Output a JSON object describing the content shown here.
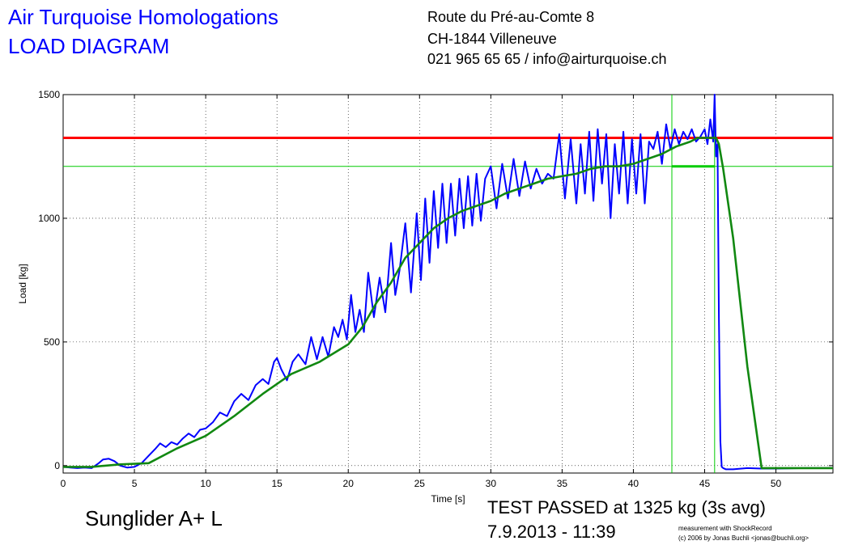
{
  "header": {
    "org_title": "Air Turquoise Homologations",
    "diagram_title": "LOAD DIAGRAM",
    "address_line1": "Route du Pré-au-Comte 8",
    "address_line2": "CH-1844 Villeneuve",
    "address_line3": "021 965 65 65 / info@airturquoise.ch"
  },
  "footer": {
    "glider_name": "Sunglider A+ L",
    "result": "TEST PASSED at 1325 kg (3s avg)",
    "datetime": "7.9.2013 - 11:39",
    "credit_line1": "measurement with ShockRecord",
    "credit_line2": "(c) 2006 by Jonas Buchli <jonas@buchli.org>"
  },
  "chart_data": {
    "type": "line",
    "xlabel": "Time [s]",
    "ylabel": "Load [kg]",
    "xlim": [
      0,
      54
    ],
    "ylim": [
      -30,
      1500
    ],
    "xticks": [
      0,
      5,
      10,
      15,
      20,
      25,
      30,
      35,
      40,
      45,
      50
    ],
    "yticks": [
      0,
      500,
      1000,
      1500
    ],
    "grid": true,
    "colors": {
      "raw": "#0000ff",
      "avg": "#118811",
      "limit": "#ff0000",
      "threshold": "#00cc00"
    },
    "reference_lines": {
      "limit_load": 1325,
      "threshold_load": 1210,
      "window_start": 42.7,
      "window_end": 45.7
    },
    "series": [
      {
        "key": "raw",
        "x": [
          0,
          0.5,
          1,
          1.5,
          2,
          2.5,
          2.8,
          3.2,
          3.6,
          4.0,
          4.5,
          5.0,
          5.5,
          6.0,
          6.5,
          6.8,
          7.2,
          7.6,
          8.0,
          8.4,
          8.8,
          9.2,
          9.6,
          10.0,
          10.5,
          11.0,
          11.5,
          12.0,
          12.5,
          13.0,
          13.5,
          14.0,
          14.4,
          14.8,
          15.0,
          15.3,
          15.7,
          16.1,
          16.5,
          17.0,
          17.4,
          17.8,
          18.2,
          18.6,
          19.0,
          19.3,
          19.6,
          19.9,
          20.2,
          20.5,
          20.8,
          21.1,
          21.4,
          21.8,
          22.2,
          22.6,
          23.0,
          23.3,
          23.6,
          24.0,
          24.4,
          24.8,
          25.1,
          25.4,
          25.7,
          26.0,
          26.3,
          26.6,
          26.9,
          27.2,
          27.5,
          27.8,
          28.1,
          28.4,
          28.7,
          29.0,
          29.3,
          29.6,
          30.0,
          30.4,
          30.8,
          31.2,
          31.6,
          32.0,
          32.4,
          32.8,
          33.2,
          33.6,
          34.0,
          34.4,
          34.8,
          35.2,
          35.6,
          36.0,
          36.3,
          36.6,
          36.9,
          37.2,
          37.5,
          37.8,
          38.1,
          38.4,
          38.7,
          39.0,
          39.3,
          39.6,
          39.9,
          40.2,
          40.5,
          40.8,
          41.1,
          41.4,
          41.7,
          42.0,
          42.3,
          42.6,
          42.9,
          43.2,
          43.5,
          43.8,
          44.1,
          44.4,
          44.7,
          45.0,
          45.2,
          45.4,
          45.6,
          45.7,
          45.8,
          45.9,
          46.0,
          46.1,
          46.2,
          46.3,
          46.5,
          47,
          48,
          49,
          50,
          52,
          54
        ],
        "y": [
          -5,
          -8,
          -10,
          -8,
          -10,
          10,
          25,
          28,
          18,
          0,
          -8,
          -5,
          10,
          40,
          70,
          90,
          75,
          95,
          85,
          110,
          130,
          115,
          145,
          150,
          175,
          215,
          200,
          260,
          290,
          265,
          325,
          350,
          330,
          420,
          435,
          390,
          345,
          420,
          450,
          410,
          520,
          430,
          520,
          440,
          560,
          520,
          590,
          510,
          690,
          540,
          630,
          540,
          780,
          600,
          760,
          620,
          900,
          690,
          790,
          980,
          700,
          1020,
          750,
          1080,
          820,
          1110,
          880,
          1140,
          900,
          1140,
          930,
          1160,
          960,
          1170,
          970,
          1180,
          990,
          1160,
          1210,
          1040,
          1220,
          1080,
          1240,
          1090,
          1230,
          1120,
          1200,
          1140,
          1180,
          1160,
          1340,
          1080,
          1320,
          1060,
          1300,
          1100,
          1350,
          1070,
          1360,
          1140,
          1340,
          1000,
          1300,
          1100,
          1350,
          1060,
          1320,
          1100,
          1340,
          1060,
          1310,
          1280,
          1350,
          1220,
          1380,
          1280,
          1360,
          1300,
          1350,
          1320,
          1360,
          1310,
          1330,
          1360,
          1300,
          1400,
          1310,
          1500,
          1250,
          1300,
          600,
          100,
          -5,
          -10,
          -15,
          -15,
          -10,
          -12,
          -12,
          -10,
          -10
        ],
        "name": ""
      },
      {
        "key": "avg",
        "x": [
          0,
          2,
          4,
          6,
          8,
          10,
          12,
          14,
          16,
          18,
          20,
          21,
          22,
          23,
          24,
          25,
          26,
          27,
          28,
          29,
          30,
          31,
          32,
          33,
          34,
          35,
          36,
          37,
          38,
          39,
          40,
          41,
          42,
          43,
          44,
          44.5,
          45,
          45.5,
          45.8,
          46.0,
          46.3,
          47,
          48,
          49,
          50,
          52,
          54
        ],
        "y": [
          -5,
          -5,
          5,
          10,
          70,
          120,
          200,
          290,
          370,
          420,
          490,
          560,
          660,
          740,
          840,
          900,
          960,
          1000,
          1030,
          1050,
          1070,
          1100,
          1120,
          1140,
          1160,
          1170,
          1180,
          1200,
          1210,
          1210,
          1220,
          1240,
          1260,
          1290,
          1310,
          1325,
          1325,
          1325,
          1325,
          1300,
          1200,
          920,
          400,
          -10,
          -10,
          -10,
          -10
        ],
        "name": ""
      }
    ]
  }
}
